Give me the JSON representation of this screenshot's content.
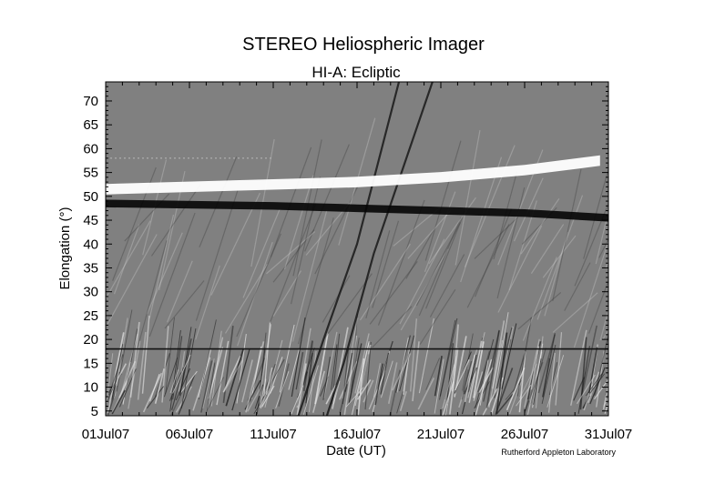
{
  "chart_data": {
    "type": "heatmap",
    "title": "STEREO Heliospheric Imager",
    "subtitle": "HI-A: Ecliptic",
    "xlabel": "Date (UT)",
    "ylabel": "Elongation (°)",
    "credit": "Rutherford Appleton Laboratory",
    "colormap": "grayscale",
    "x_tick_labels": [
      "01Jul07",
      "06Jul07",
      "11Jul07",
      "16Jul07",
      "21Jul07",
      "26Jul07",
      "31Jul07"
    ],
    "x_tick_dates": [
      "2007-07-01",
      "2007-07-06",
      "2007-07-11",
      "2007-07-16",
      "2007-07-21",
      "2007-07-26",
      "2007-07-31"
    ],
    "xlim": [
      "2007-07-01",
      "2007-07-31"
    ],
    "y_ticks": [
      5,
      10,
      15,
      20,
      25,
      30,
      35,
      40,
      45,
      50,
      55,
      60,
      65,
      70
    ],
    "ylim": [
      4,
      74
    ],
    "features": {
      "bright_band_elongation": [
        [
          0,
          51.5
        ],
        [
          10,
          52.5
        ],
        [
          15,
          53
        ],
        [
          20,
          54
        ],
        [
          25,
          55.5
        ],
        [
          29.5,
          57.5
        ]
      ],
      "dark_band_elongation": [
        [
          0,
          48.5
        ],
        [
          10,
          48
        ],
        [
          15,
          47.5
        ],
        [
          20,
          47
        ],
        [
          25,
          46.5
        ],
        [
          30,
          45.5
        ]
      ],
      "discontinuity_elongation": 18
    },
    "colors": {
      "background": "#ffffff",
      "frame": "#000000",
      "map_mid": "#808080"
    }
  }
}
